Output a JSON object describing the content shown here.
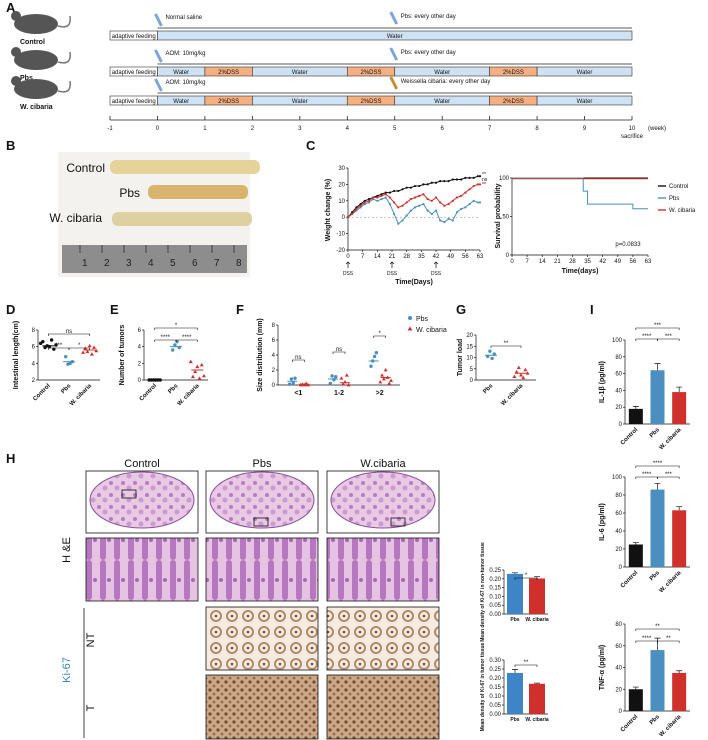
{
  "panel_letters": {
    "A": "A",
    "B": "B",
    "C": "C",
    "D": "D",
    "E": "E",
    "F": "F",
    "G": "G",
    "H": "H",
    "I": "I"
  },
  "colors": {
    "control": "#111111",
    "pbs": "#4a8fc0",
    "wcibaria": "#d0302c",
    "water_bar": "#cfe2f3",
    "dss_bar": "#f4b083",
    "pbs_bar": "#3d85c6",
    "wc_bar": "#d0302c"
  },
  "panelA": {
    "groups": [
      "Control",
      "Pbs",
      "W. cibaria"
    ],
    "rows": [
      {
        "injection": "Normal saline",
        "gavage": "Pbs: every other day",
        "segments": [
          "adaptive feeding",
          "Water"
        ]
      },
      {
        "injection": "AOM: 10mg/kg",
        "gavage": "Pbs: every other day",
        "segments": [
          "adaptive feeding",
          "Water",
          "2%DSS",
          "Water",
          "2%DSS",
          "Water",
          "2%DSS",
          "Water"
        ]
      },
      {
        "injection": "AOM: 10mg/kg",
        "gavage": "Weissella cibaria: every other day",
        "segments": [
          "adaptive feeding",
          "Water",
          "2%DSS",
          "Water",
          "2%DSS",
          "Water",
          "2%DSS",
          "Water"
        ]
      }
    ],
    "axis_ticks": [
      "-1",
      "0",
      "1",
      "2",
      "3",
      "4",
      "5",
      "6",
      "7",
      "8",
      "9",
      "10"
    ],
    "axis_unit": "(week)",
    "sacrifice": "sacrifice"
  },
  "panelB": {
    "labels": [
      "Control",
      "Pbs",
      "W. cibaria"
    ],
    "ruler_ticks": [
      "1",
      "2",
      "3",
      "4",
      "5",
      "6",
      "7",
      "8"
    ]
  },
  "chart_data": [
    {
      "id": "C-weight",
      "type": "line",
      "ylabel": "Weight change (%)",
      "xlabel": "Time(Days)",
      "ylim": [
        -20,
        30
      ],
      "y_ticks": [
        "-20",
        "-10",
        "0",
        "10",
        "20",
        "30"
      ],
      "x_ticks": [
        "0",
        "7",
        "14",
        "21",
        "28",
        "35",
        "42",
        "49",
        "56",
        "63"
      ],
      "dss_markers": [
        "DSS",
        "DSS",
        "DSS"
      ],
      "dss_days": [
        0,
        21,
        42
      ],
      "x": [
        0,
        2,
        4,
        6,
        8,
        10,
        12,
        14,
        16,
        18,
        20,
        22,
        24,
        26,
        28,
        30,
        32,
        34,
        36,
        38,
        40,
        42,
        44,
        46,
        48,
        50,
        52,
        54,
        56,
        58,
        60,
        62,
        63
      ],
      "series": [
        {
          "name": "Control",
          "values": [
            0,
            3,
            6,
            8,
            10,
            11,
            12,
            13,
            14,
            15,
            15,
            16,
            16,
            17,
            18,
            18,
            19,
            19,
            20,
            20,
            21,
            21,
            22,
            22,
            22,
            23,
            23,
            23,
            24,
            24,
            24,
            25,
            25
          ]
        },
        {
          "name": "Pbs",
          "values": [
            0,
            2,
            4,
            6,
            8,
            9,
            11,
            10,
            11,
            12,
            8,
            2,
            -4,
            -2,
            1,
            4,
            6,
            7,
            8,
            4,
            2,
            4,
            -2,
            -3,
            -1,
            -2,
            3,
            5,
            6,
            8,
            10,
            9,
            9
          ]
        },
        {
          "name": "W. cibaria",
          "values": [
            0,
            2,
            5,
            7,
            9,
            10,
            12,
            12,
            13,
            14,
            12,
            9,
            6,
            7,
            9,
            11,
            12,
            13,
            14,
            11,
            10,
            12,
            9,
            7,
            8,
            10,
            12,
            13,
            15,
            17,
            19,
            20,
            20
          ]
        }
      ],
      "end_labels": [
        "**",
        "ns",
        "**"
      ]
    },
    {
      "id": "C-survival",
      "type": "line",
      "ylabel": "Survival probability",
      "xlabel": "Time(days)",
      "ylim": [
        0,
        100
      ],
      "y_ticks": [
        "0",
        "50",
        "100"
      ],
      "x_ticks": [
        "0",
        "7",
        "14",
        "21",
        "28",
        "35",
        "42",
        "49",
        "56",
        "63"
      ],
      "legend": [
        "Control",
        "Pbs",
        "W. cibaria"
      ],
      "pvalue": "p=0.0833",
      "series": [
        {
          "name": "Control",
          "steps": [
            [
              0,
              100
            ],
            [
              63,
              100
            ]
          ]
        },
        {
          "name": "Pbs",
          "steps": [
            [
              0,
              100
            ],
            [
              33,
              100
            ],
            [
              33,
              83
            ],
            [
              35,
              83
            ],
            [
              35,
              66
            ],
            [
              56,
              66
            ],
            [
              56,
              60
            ],
            [
              63,
              60
            ]
          ]
        },
        {
          "name": "W. cibaria",
          "steps": [
            [
              0,
              100
            ],
            [
              63,
              100
            ]
          ]
        }
      ]
    },
    {
      "id": "D",
      "type": "scatter",
      "ylabel": "Intestinal length(cm)",
      "ylim": [
        2,
        8
      ],
      "y_ticks": [
        "2",
        "4",
        "6",
        "8"
      ],
      "categories": [
        "Control",
        "Pbs",
        "W. cibaria"
      ],
      "means": [
        6.1,
        4.2,
        5.6
      ],
      "points": [
        [
          6.4,
          6.6,
          5.9,
          6.1,
          6.0,
          6.8,
          5.7,
          6.2
        ],
        [
          4.8,
          3.9,
          4.0,
          4.2
        ],
        [
          5.3,
          5.8,
          5.4,
          6.1,
          5.1,
          5.9,
          5.5
        ]
      ],
      "sig": [
        {
          "a": 0,
          "b": 1,
          "label": "***"
        },
        {
          "a": 1,
          "b": 2,
          "label": "*"
        },
        {
          "a": 0,
          "b": 2,
          "label": "ns"
        }
      ]
    },
    {
      "id": "E",
      "type": "scatter",
      "ylabel": "Number of tumors",
      "ylim": [
        0,
        6
      ],
      "y_ticks": [
        "0",
        "2",
        "4",
        "6"
      ],
      "categories": [
        "Control",
        "Pbs",
        "W. cibaria"
      ],
      "means": [
        0,
        4.0,
        1.2
      ],
      "points": [
        [
          0,
          0,
          0,
          0,
          0,
          0
        ],
        [
          3.6,
          4.2,
          4.6,
          3.9
        ],
        [
          2.2,
          0.4,
          1.0,
          1.6,
          0.2,
          1.8,
          0.5
        ]
      ],
      "sig": [
        {
          "a": 0,
          "b": 1,
          "label": "****"
        },
        {
          "a": 1,
          "b": 2,
          "label": "****"
        },
        {
          "a": 0,
          "b": 2,
          "label": "*"
        }
      ]
    },
    {
      "id": "F",
      "type": "scatter",
      "ylabel": "Size distribution (mm)",
      "ylim": [
        0,
        8
      ],
      "y_ticks": [
        "0",
        "2",
        "4",
        "6",
        "8"
      ],
      "categories": [
        "<1",
        "1-2",
        ">2"
      ],
      "legend": [
        "Pbs",
        "W. cibaria"
      ],
      "series": [
        {
          "name": "Pbs",
          "means": [
            0.5,
            0.8,
            3.2
          ],
          "points": [
            [
              0.1,
              0.8,
              0.3,
              0.9
            ],
            [
              0.2,
              1.2,
              0.7,
              1.1
            ],
            [
              2.5,
              3.2,
              3.8,
              4.3
            ]
          ]
        },
        {
          "name": "W. cibaria",
          "means": [
            0.1,
            0.3,
            1.0
          ],
          "points": [
            [
              0,
              0.1,
              0,
              0.2,
              0
            ],
            [
              0.9,
              0.1,
              0.4,
              1.3,
              0
            ],
            [
              0.4,
              1.3,
              0.8,
              2.0,
              1.0,
              0.2,
              0.6
            ]
          ]
        }
      ],
      "sig": [
        "ns",
        "ns",
        "*"
      ]
    },
    {
      "id": "G",
      "type": "scatter",
      "ylabel": "Tumor load",
      "ylim": [
        0,
        20
      ],
      "y_ticks": [
        "0",
        "5",
        "10",
        "15",
        "20"
      ],
      "categories": [
        "Pbs",
        "W. cibaria"
      ],
      "means": [
        11,
        3
      ],
      "points": [
        [
          10.5,
          12.8,
          9.6,
          11.5
        ],
        [
          1.5,
          3.6,
          5.5,
          2.2,
          1.0,
          4.5,
          3.0
        ]
      ],
      "sig": [
        {
          "a": 0,
          "b": 1,
          "label": "**"
        }
      ]
    },
    {
      "id": "I-IL1b",
      "type": "bar",
      "ylabel": "IL-1β (pg/ml)",
      "ylim": [
        0,
        100
      ],
      "y_ticks": [
        "0",
        "20",
        "40",
        "60",
        "80",
        "100"
      ],
      "categories": [
        "Control",
        "Pbs",
        "W. cibaria"
      ],
      "values": [
        18,
        64,
        38
      ],
      "errors": [
        3,
        8,
        6
      ],
      "sig": [
        {
          "a": 0,
          "b": 1,
          "label": "****"
        },
        {
          "a": 1,
          "b": 2,
          "label": "***"
        },
        {
          "a": 0,
          "b": 2,
          "label": "***"
        }
      ]
    },
    {
      "id": "I-IL6",
      "type": "bar",
      "ylabel": "IL-6 (pg/ml)",
      "ylim": [
        0,
        100
      ],
      "y_ticks": [
        "0",
        "20",
        "40",
        "60",
        "80",
        "100"
      ],
      "categories": [
        "Control",
        "Pbs",
        "W. cibaria"
      ],
      "values": [
        25,
        86,
        63
      ],
      "errors": [
        2,
        7,
        4
      ],
      "sig": [
        {
          "a": 0,
          "b": 1,
          "label": "****"
        },
        {
          "a": 1,
          "b": 2,
          "label": "***"
        },
        {
          "a": 0,
          "b": 2,
          "label": "****"
        }
      ]
    },
    {
      "id": "I-TNFa",
      "type": "bar",
      "ylabel": "TNF-α (pg/ml)",
      "ylim": [
        0,
        80
      ],
      "y_ticks": [
        "0",
        "20",
        "40",
        "60",
        "80"
      ],
      "categories": [
        "Control",
        "Pbs",
        "W. cibaria"
      ],
      "values": [
        20,
        56,
        35
      ],
      "errors": [
        2,
        11,
        2
      ],
      "sig": [
        {
          "a": 0,
          "b": 1,
          "label": "****"
        },
        {
          "a": 1,
          "b": 2,
          "label": "**"
        },
        {
          "a": 0,
          "b": 2,
          "label": "**"
        }
      ]
    },
    {
      "id": "H-ki67-NT",
      "type": "bar",
      "ylabel": "Mean density of Ki-67 in non-tumor tissue",
      "ylim": [
        0,
        0.25
      ],
      "y_ticks": [
        "0.00",
        "0.05",
        "0.10",
        "0.15",
        "0.20",
        "0.25"
      ],
      "categories": [
        "Pbs",
        "W. cibaria"
      ],
      "values": [
        0.228,
        0.202
      ],
      "errors": [
        0.006,
        0.01
      ],
      "sig": [
        {
          "a": 0,
          "b": 1,
          "label": "*"
        }
      ]
    },
    {
      "id": "H-ki67-T",
      "type": "bar",
      "ylabel": "Mean density of Ki-67 in tumor tissue",
      "ylim": [
        0,
        0.3
      ],
      "y_ticks": [
        "0.00",
        "0.05",
        "0.10",
        "0.15",
        "0.20",
        "0.25",
        "0.30"
      ],
      "categories": [
        "Pbs",
        "W. cibaria"
      ],
      "values": [
        0.228,
        0.168
      ],
      "errors": [
        0.02,
        0.004
      ],
      "sig": [
        {
          "a": 0,
          "b": 1,
          "label": "**"
        }
      ]
    }
  ],
  "panelH": {
    "columns": [
      "Control",
      "Pbs",
      "W.cibaria"
    ],
    "row_he": "H &E",
    "row_ki": "Ki-67",
    "sub_nt": "NT",
    "sub_t": "T"
  }
}
